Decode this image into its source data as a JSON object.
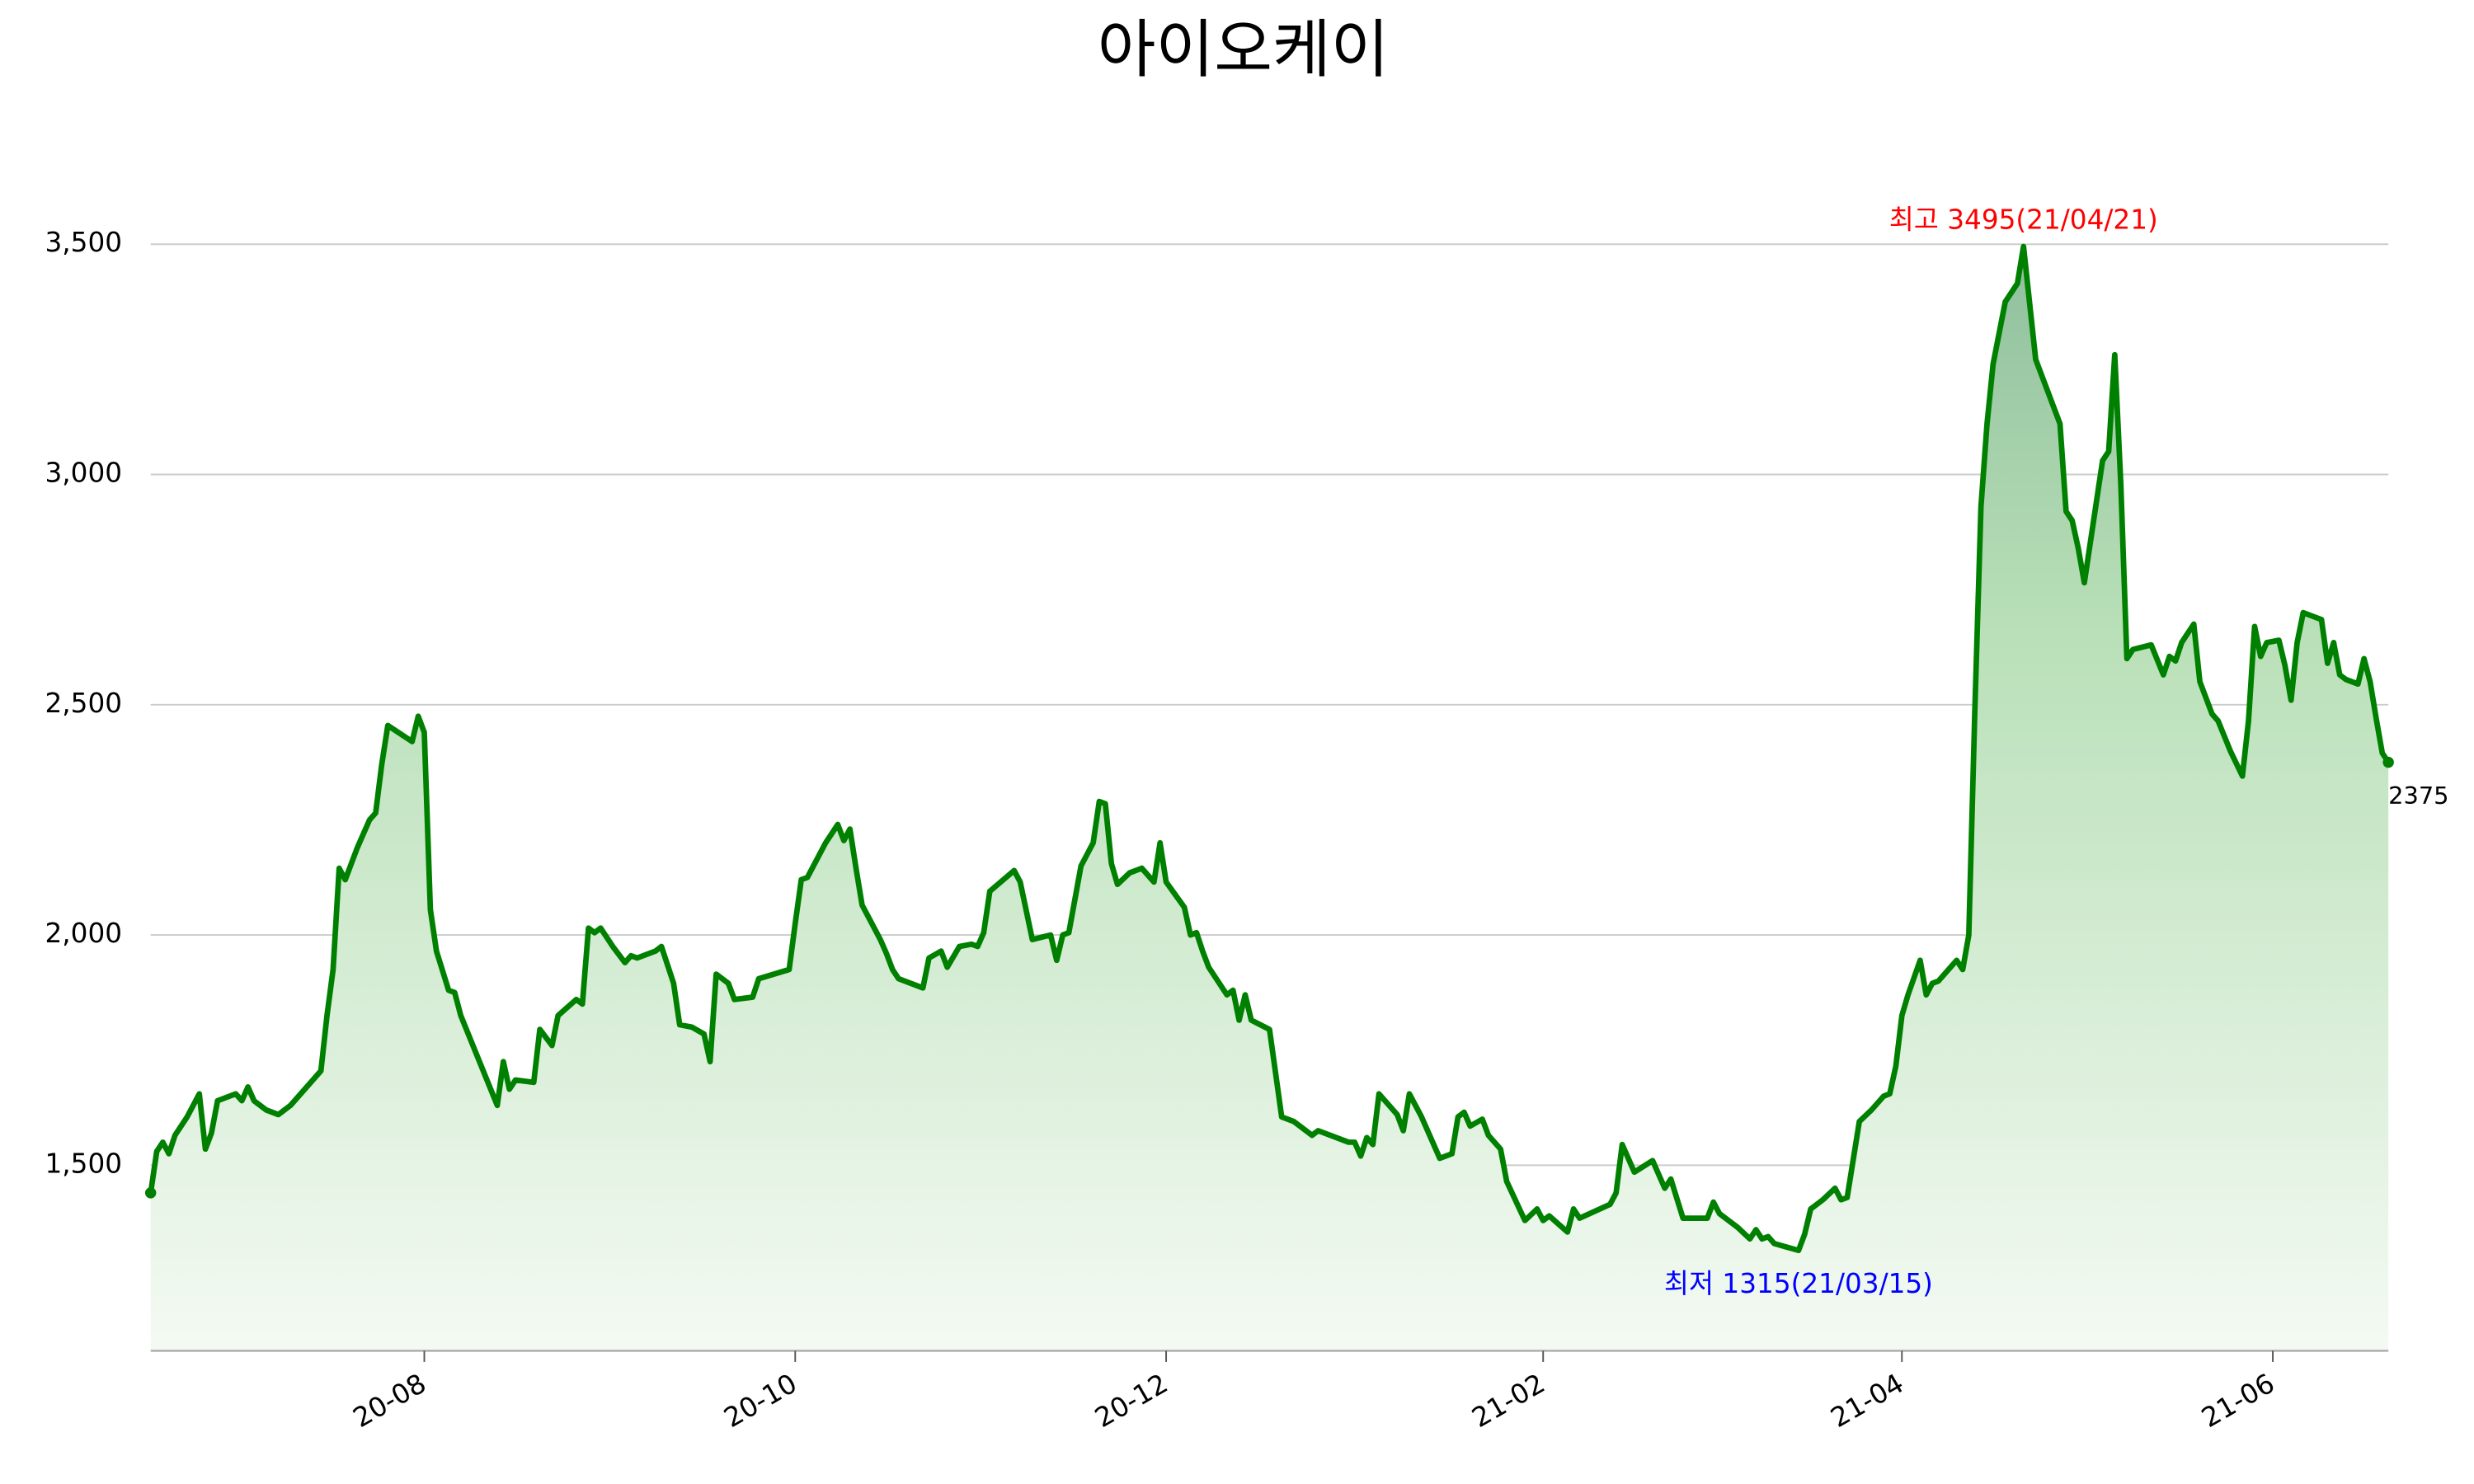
{
  "chart_data": {
    "type": "area",
    "title": "아이오케이",
    "color": "#008000",
    "grid": true,
    "xlim": [
      "2020-06-17",
      "2021-06-20"
    ],
    "xticks": [
      {
        "value": "2020-08-01",
        "label": "20-08"
      },
      {
        "value": "2020-10-01",
        "label": "20-10"
      },
      {
        "value": "2020-12-01",
        "label": "20-12"
      },
      {
        "value": "2021-02-01",
        "label": "21-02"
      },
      {
        "value": "2021-04-01",
        "label": "21-04"
      },
      {
        "value": "2021-06-01",
        "label": "21-06"
      }
    ],
    "ylim": [
      1097,
      3600
    ],
    "yticks": [
      {
        "value": 1500,
        "label": "1,500"
      },
      {
        "value": 2000,
        "label": "2,000"
      },
      {
        "value": 2500,
        "label": "2,500"
      },
      {
        "value": 3000,
        "label": "3,000"
      },
      {
        "value": 3500,
        "label": "3,500"
      }
    ],
    "annotations": [
      {
        "text": "최고 3495(21/04/21)",
        "color": "#ff0000"
      },
      {
        "text": "최저 1315(21/03/15)",
        "color": "#0000ff"
      }
    ],
    "x": [
      "2020-06-17",
      "2020-06-18",
      "2020-06-19",
      "2020-06-20",
      "2020-06-21",
      "2020-06-23",
      "2020-06-25",
      "2020-06-26",
      "2020-06-27",
      "2020-06-28",
      "2020-07-01",
      "2020-07-02",
      "2020-07-03",
      "2020-07-04",
      "2020-07-06",
      "2020-07-08",
      "2020-07-09",
      "2020-07-10",
      "2020-07-15",
      "2020-07-16",
      "2020-07-17",
      "2020-07-18",
      "2020-07-19",
      "2020-07-21",
      "2020-07-23",
      "2020-07-24",
      "2020-07-25",
      "2020-07-26",
      "2020-07-30",
      "2020-07-31",
      "2020-08-01",
      "2020-08-02",
      "2020-08-03",
      "2020-08-05",
      "2020-08-06",
      "2020-08-07",
      "2020-08-09",
      "2020-08-13",
      "2020-08-14",
      "2020-08-15",
      "2020-08-16",
      "2020-08-19",
      "2020-08-20",
      "2020-08-22",
      "2020-08-23",
      "2020-08-26",
      "2020-08-27",
      "2020-08-28",
      "2020-08-29",
      "2020-08-30",
      "2020-09-01",
      "2020-09-03",
      "2020-09-04",
      "2020-09-05",
      "2020-09-08",
      "2020-09-09",
      "2020-09-11",
      "2020-09-12",
      "2020-09-14",
      "2020-09-16",
      "2020-09-17",
      "2020-09-18",
      "2020-09-20",
      "2020-09-21",
      "2020-09-24",
      "2020-09-25",
      "2020-09-30",
      "2020-10-01",
      "2020-10-02",
      "2020-10-03",
      "2020-10-06",
      "2020-10-08",
      "2020-10-09",
      "2020-10-10",
      "2020-10-11",
      "2020-10-12",
      "2020-10-14",
      "2020-10-15",
      "2020-10-16",
      "2020-10-17",
      "2020-10-18",
      "2020-10-22",
      "2020-10-23",
      "2020-10-25",
      "2020-10-26",
      "2020-10-28",
      "2020-10-30",
      "2020-10-31",
      "2020-11-01",
      "2020-11-02",
      "2020-11-06",
      "2020-11-07",
      "2020-11-09",
      "2020-11-12",
      "2020-11-13",
      "2020-11-14",
      "2020-11-15",
      "2020-11-17",
      "2020-11-19",
      "2020-11-20",
      "2020-11-21",
      "2020-11-22",
      "2020-11-23",
      "2020-11-25",
      "2020-11-27",
      "2020-11-29",
      "2020-11-30",
      "2020-12-01",
      "2020-12-04",
      "2020-12-05",
      "2020-12-06",
      "2020-12-07",
      "2020-12-08",
      "2020-12-11",
      "2020-12-12",
      "2020-12-13",
      "2020-12-14",
      "2020-12-15",
      "2020-12-18",
      "2020-12-20",
      "2020-12-22",
      "2020-12-25",
      "2020-12-26",
      "2020-12-27",
      "2020-12-31",
      "2021-01-01",
      "2021-01-02",
      "2021-01-03",
      "2021-01-04",
      "2021-01-05",
      "2021-01-08",
      "2021-01-09",
      "2021-01-10",
      "2021-01-12",
      "2021-01-15",
      "2021-01-17",
      "2021-01-18",
      "2021-01-19",
      "2021-01-20",
      "2021-01-22",
      "2021-01-23",
      "2021-01-25",
      "2021-01-26",
      "2021-01-29",
      "2021-01-31",
      "2021-02-01",
      "2021-02-02",
      "2021-02-05",
      "2021-02-06",
      "2021-02-07",
      "2021-02-12",
      "2021-02-13",
      "2021-02-14",
      "2021-02-16",
      "2021-02-19",
      "2021-02-21",
      "2021-02-22",
      "2021-02-24",
      "2021-02-28",
      "2021-03-01",
      "2021-03-02",
      "2021-03-05",
      "2021-03-07",
      "2021-03-08",
      "2021-03-09",
      "2021-03-10",
      "2021-03-11",
      "2021-03-15",
      "2021-03-16",
      "2021-03-17",
      "2021-03-19",
      "2021-03-21",
      "2021-03-22",
      "2021-03-23",
      "2021-03-25",
      "2021-03-27",
      "2021-03-29",
      "2021-03-30",
      "2021-03-31",
      "2021-04-01",
      "2021-04-02",
      "2021-04-04",
      "2021-04-05",
      "2021-04-06",
      "2021-04-07",
      "2021-04-10",
      "2021-04-11",
      "2021-04-12",
      "2021-04-13",
      "2021-04-14",
      "2021-04-15",
      "2021-04-16",
      "2021-04-18",
      "2021-04-20",
      "2021-04-21",
      "2021-04-23",
      "2021-04-27",
      "2021-04-28",
      "2021-04-29",
      "2021-04-30",
      "2021-05-01",
      "2021-05-04",
      "2021-05-05",
      "2021-05-06",
      "2021-05-07",
      "2021-05-08",
      "2021-05-09",
      "2021-05-12",
      "2021-05-14",
      "2021-05-15",
      "2021-05-16",
      "2021-05-17",
      "2021-05-19",
      "2021-05-20",
      "2021-05-22",
      "2021-05-23",
      "2021-05-25",
      "2021-05-27",
      "2021-05-28",
      "2021-05-29",
      "2021-05-30",
      "2021-05-31",
      "2021-06-02",
      "2021-06-03",
      "2021-06-04",
      "2021-06-05",
      "2021-06-06",
      "2021-06-09",
      "2021-06-10",
      "2021-06-11",
      "2021-06-12",
      "2021-06-13",
      "2021-06-15",
      "2021-06-16",
      "2021-06-17",
      "2021-06-18",
      "2021-06-19",
      "2021-06-20"
    ],
    "values": [
      1440,
      1530,
      1550,
      1525,
      1565,
      1605,
      1655,
      1535,
      1570,
      1640,
      1655,
      1640,
      1670,
      1640,
      1620,
      1610,
      1620,
      1630,
      1705,
      1825,
      1925,
      2145,
      2120,
      2190,
      2250,
      2265,
      2370,
      2455,
      2420,
      2475,
      2440,
      2055,
      1965,
      1880,
      1875,
      1825,
      1760,
      1630,
      1725,
      1665,
      1685,
      1680,
      1795,
      1760,
      1825,
      1860,
      1850,
      2015,
      2005,
      2015,
      1975,
      1940,
      1955,
      1950,
      1965,
      1975,
      1895,
      1805,
      1800,
      1785,
      1725,
      1915,
      1895,
      1860,
      1865,
      1905,
      1925,
      2025,
      2120,
      2125,
      2200,
      2240,
      2205,
      2230,
      2145,
      2065,
      2015,
      1990,
      1960,
      1925,
      1905,
      1885,
      1950,
      1965,
      1930,
      1975,
      1980,
      1975,
      2005,
      2095,
      2140,
      2115,
      1990,
      2000,
      1945,
      2000,
      2005,
      2150,
      2200,
      2290,
      2285,
      2155,
      2110,
      2135,
      2145,
      2115,
      2200,
      2115,
      2060,
      2000,
      2005,
      1965,
      1930,
      1870,
      1880,
      1815,
      1870,
      1815,
      1795,
      1605,
      1595,
      1565,
      1575,
      1570,
      1550,
      1550,
      1520,
      1560,
      1545,
      1655,
      1610,
      1575,
      1655,
      1605,
      1515,
      1525,
      1605,
      1615,
      1585,
      1600,
      1565,
      1535,
      1465,
      1380,
      1405,
      1380,
      1390,
      1355,
      1405,
      1385,
      1415,
      1440,
      1545,
      1485,
      1510,
      1450,
      1470,
      1385,
      1385,
      1420,
      1395,
      1365,
      1340,
      1360,
      1340,
      1345,
      1330,
      1315,
      1350,
      1405,
      1425,
      1450,
      1425,
      1430,
      1595,
      1620,
      1650,
      1655,
      1715,
      1825,
      1870,
      1945,
      1870,
      1895,
      1900,
      1945,
      1925,
      2000,
      2490,
      2930,
      3110,
      3240,
      3375,
      3415,
      3495,
      3250,
      3110,
      2920,
      2900,
      2840,
      2765,
      3030,
      3050,
      3260,
      2980,
      2600,
      2620,
      2630,
      2565,
      2605,
      2595,
      2635,
      2675,
      2550,
      2480,
      2465,
      2400,
      2345,
      2465,
      2670,
      2605,
      2635,
      2640,
      2585,
      2510,
      2635,
      2700,
      2685,
      2590,
      2635,
      2565,
      2555,
      2545,
      2600,
      2550,
      2470,
      2395,
      2375
    ]
  }
}
